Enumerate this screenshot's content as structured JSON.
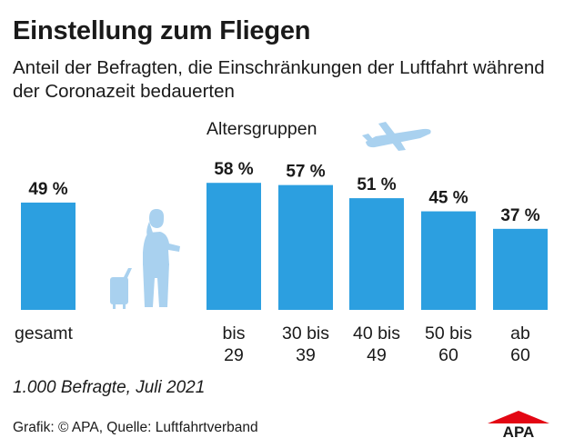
{
  "title": "Einstellung zum Fliegen",
  "subtitle": "Anteil der Befragten, die Einschränkungen der Luftfahrt während der Coronazeit bedauerten",
  "group_label": "Altersgruppen",
  "footnote": "1.000 Befragte, Juli 2021",
  "source": "Grafik: © APA, Quelle: Luftfahrtverband",
  "logo_text": "APA",
  "colors": {
    "bar": "#2c9fe0",
    "illustration": "#a9d1ef",
    "text": "#1a1a1a"
  },
  "icons": [
    "traveler-with-suitcase-icon",
    "airplane-icon",
    "apa-logo"
  ],
  "chart_data": {
    "type": "bar",
    "title": "Einstellung zum Fliegen",
    "unit": "%",
    "categories": [
      [
        "gesamt"
      ],
      [
        "bis",
        "29"
      ],
      [
        "30 bis",
        "39"
      ],
      [
        "40 bis",
        "49"
      ],
      [
        "50 bis",
        "60"
      ],
      [
        "ab",
        "60"
      ]
    ],
    "values": [
      49,
      58,
      57,
      51,
      45,
      37
    ],
    "value_labels": [
      "49 %",
      "58 %",
      "57 %",
      "51 %",
      "45 %",
      "37 %"
    ],
    "ylim": [
      0,
      100
    ],
    "grid": false,
    "legend": "none"
  }
}
